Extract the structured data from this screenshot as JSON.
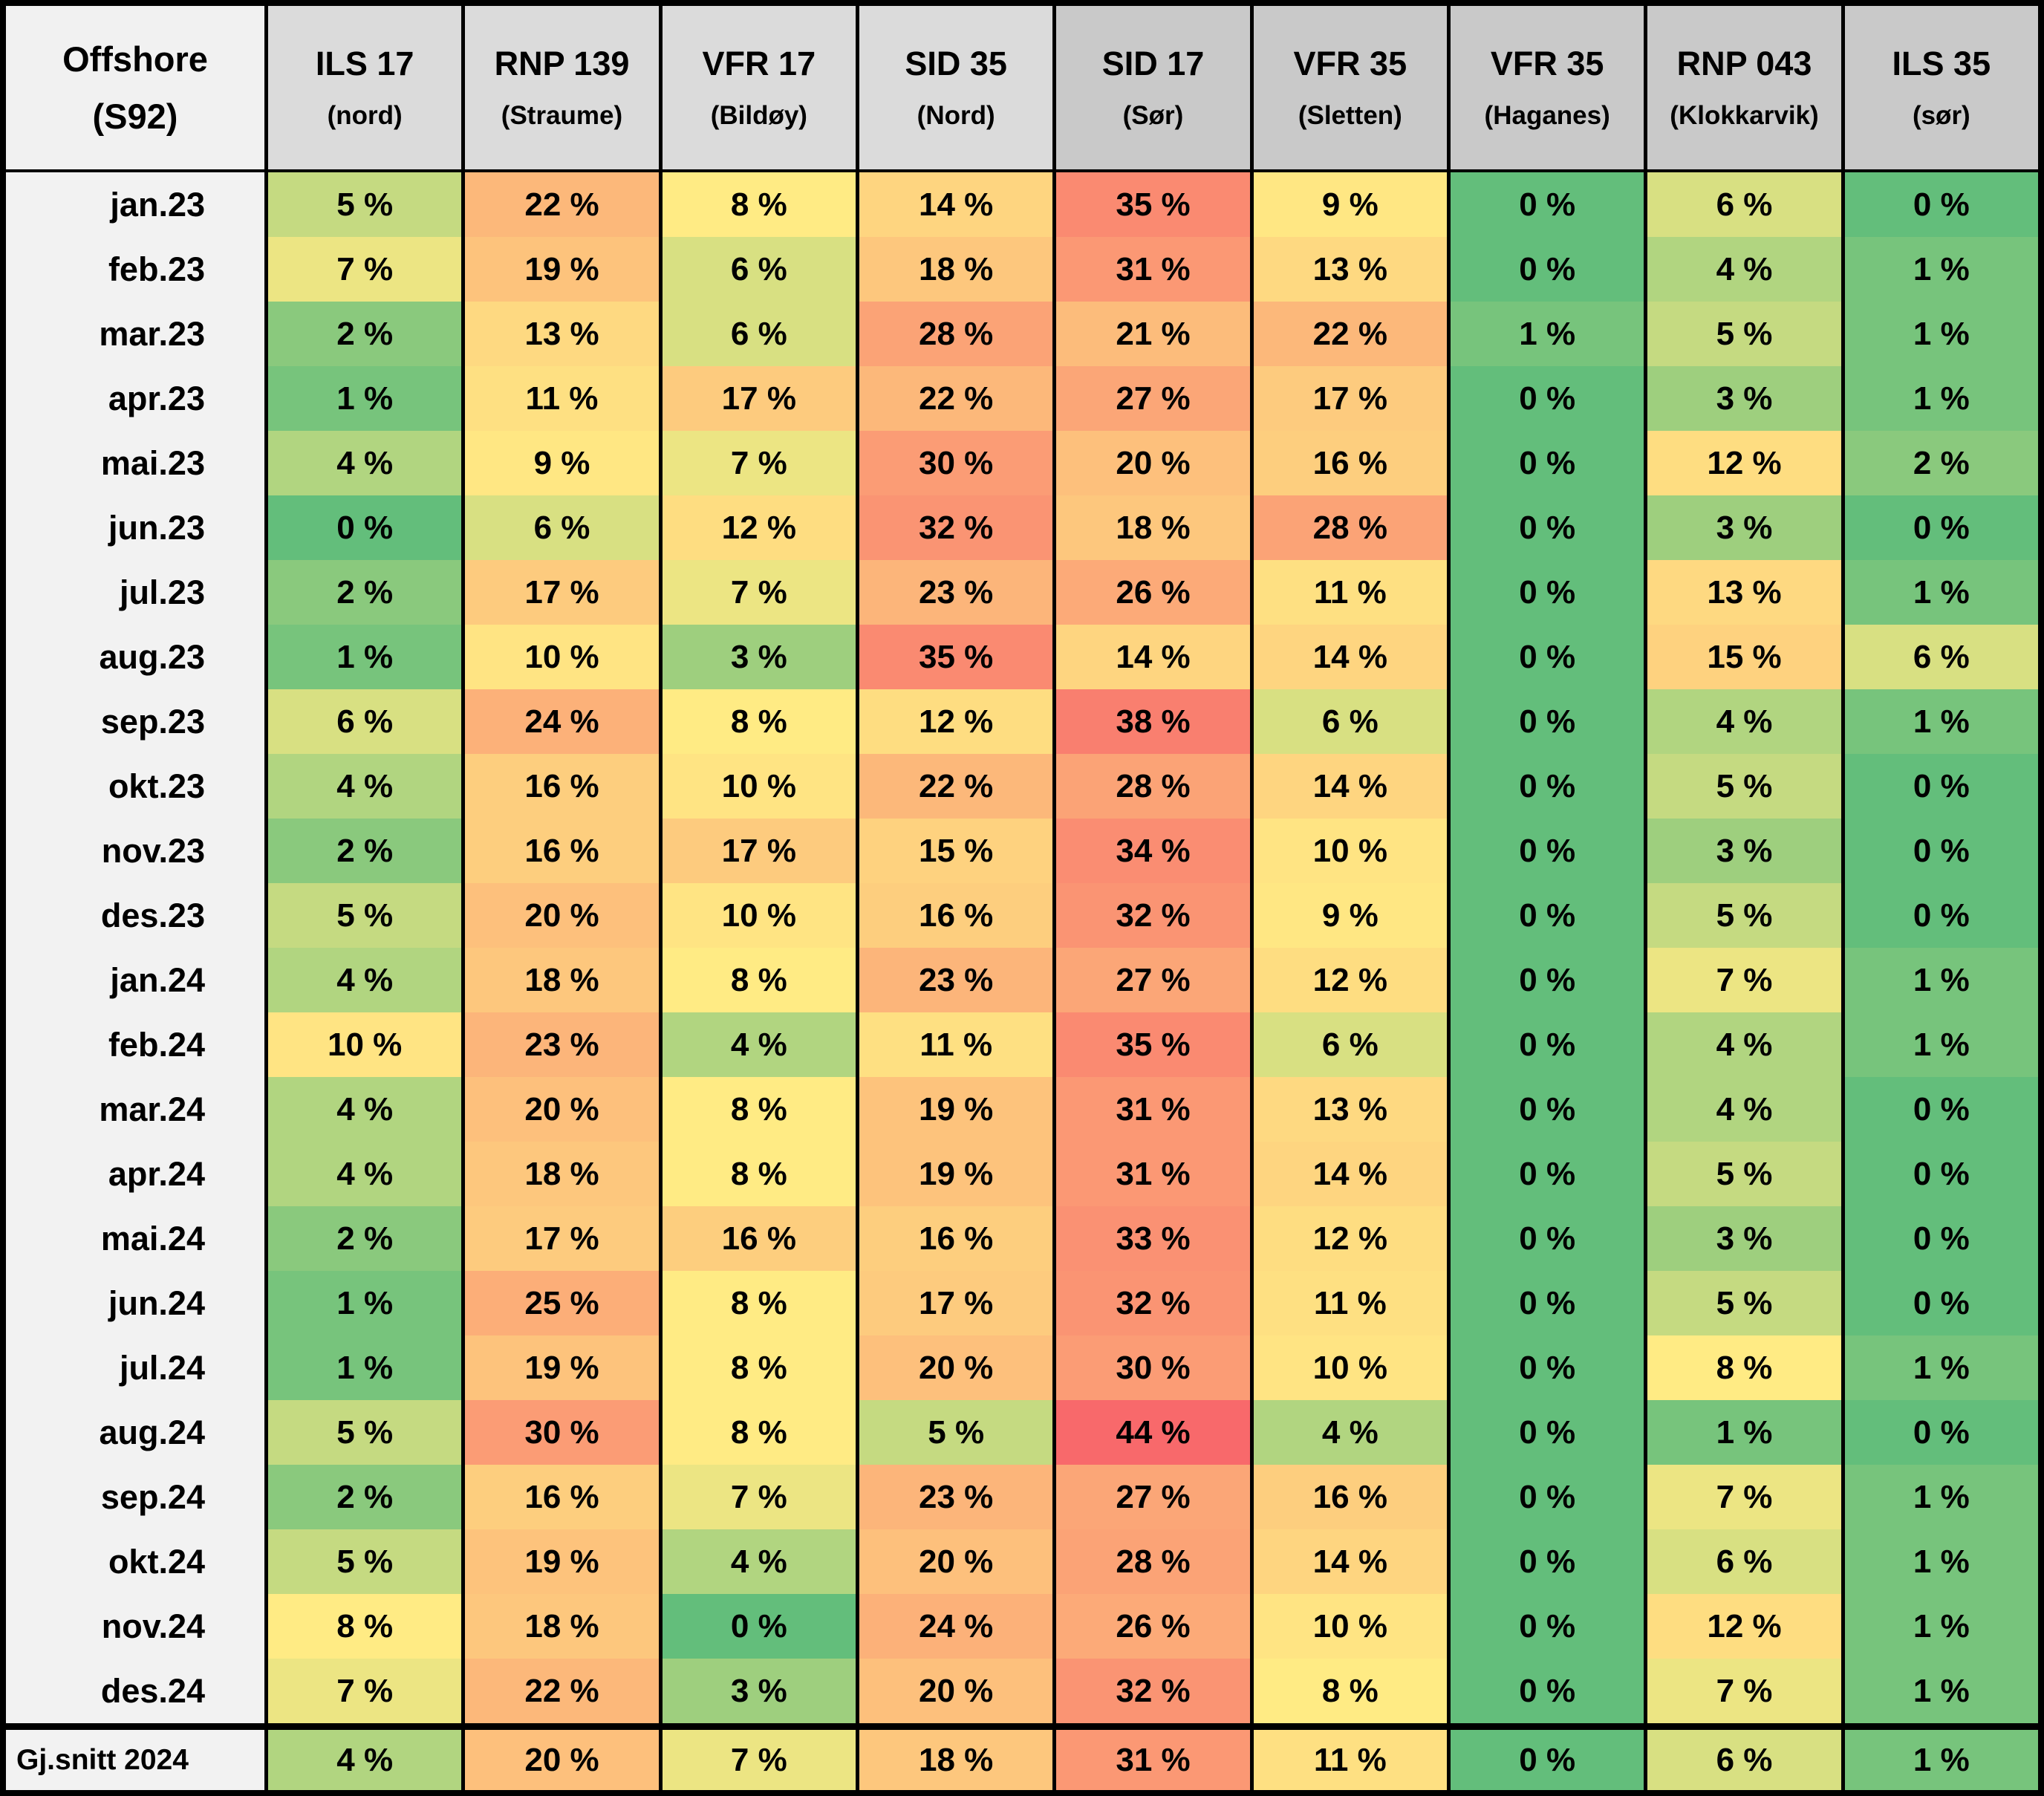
{
  "chart_data": {
    "type": "heatmap",
    "title": "Offshore (S92) approach/departure usage heatmap",
    "corner_title": "Offshore",
    "corner_subtitle": "(S92)",
    "value_suffix": " %",
    "columns": [
      {
        "name": "ILS 17",
        "subtitle": "(nord)",
        "header_shade": "light"
      },
      {
        "name": "RNP 139",
        "subtitle": "(Straume)",
        "header_shade": "light"
      },
      {
        "name": "VFR 17",
        "subtitle": "(Bildøy)",
        "header_shade": "light"
      },
      {
        "name": "SID 35",
        "subtitle": "(Nord)",
        "header_shade": "light"
      },
      {
        "name": "SID 17",
        "subtitle": "(Sør)",
        "header_shade": "dark"
      },
      {
        "name": "VFR 35",
        "subtitle": "(Sletten)",
        "header_shade": "dark"
      },
      {
        "name": "VFR 35",
        "subtitle": "(Haganes)",
        "header_shade": "dark"
      },
      {
        "name": "RNP 043",
        "subtitle": "(Klokkarvik)",
        "header_shade": "dark"
      },
      {
        "name": "ILS 35",
        "subtitle": "(sør)",
        "header_shade": "dark"
      }
    ],
    "rows": [
      "jan.23",
      "feb.23",
      "mar.23",
      "apr.23",
      "mai.23",
      "jun.23",
      "jul.23",
      "aug.23",
      "sep.23",
      "okt.23",
      "nov.23",
      "des.23",
      "jan.24",
      "feb.24",
      "mar.24",
      "apr.24",
      "mai.24",
      "jun.24",
      "jul.24",
      "aug.24",
      "sep.24",
      "okt.24",
      "nov.24",
      "des.24"
    ],
    "values": [
      [
        5,
        22,
        8,
        14,
        35,
        9,
        0,
        6,
        0
      ],
      [
        7,
        19,
        6,
        18,
        31,
        13,
        0,
        4,
        1
      ],
      [
        2,
        13,
        6,
        28,
        21,
        22,
        1,
        5,
        1
      ],
      [
        1,
        11,
        17,
        22,
        27,
        17,
        0,
        3,
        1
      ],
      [
        4,
        9,
        7,
        30,
        20,
        16,
        0,
        12,
        2
      ],
      [
        0,
        6,
        12,
        32,
        18,
        28,
        0,
        3,
        0
      ],
      [
        2,
        17,
        7,
        23,
        26,
        11,
        0,
        13,
        1
      ],
      [
        1,
        10,
        3,
        35,
        14,
        14,
        0,
        15,
        6
      ],
      [
        6,
        24,
        8,
        12,
        38,
        6,
        0,
        4,
        1
      ],
      [
        4,
        16,
        10,
        22,
        28,
        14,
        0,
        5,
        0
      ],
      [
        2,
        16,
        17,
        15,
        34,
        10,
        0,
        3,
        0
      ],
      [
        5,
        20,
        10,
        16,
        32,
        9,
        0,
        5,
        0
      ],
      [
        4,
        18,
        8,
        23,
        27,
        12,
        0,
        7,
        1
      ],
      [
        10,
        23,
        4,
        11,
        35,
        6,
        0,
        4,
        1
      ],
      [
        4,
        20,
        8,
        19,
        31,
        13,
        0,
        4,
        0
      ],
      [
        4,
        18,
        8,
        19,
        31,
        14,
        0,
        5,
        0
      ],
      [
        2,
        17,
        16,
        16,
        33,
        12,
        0,
        3,
        0
      ],
      [
        1,
        25,
        8,
        17,
        32,
        11,
        0,
        5,
        0
      ],
      [
        1,
        19,
        8,
        20,
        30,
        10,
        0,
        8,
        1
      ],
      [
        5,
        30,
        8,
        5,
        44,
        4,
        0,
        1,
        0
      ],
      [
        2,
        16,
        7,
        23,
        27,
        16,
        0,
        7,
        1
      ],
      [
        5,
        19,
        4,
        20,
        28,
        14,
        0,
        6,
        1
      ],
      [
        8,
        18,
        0,
        24,
        26,
        10,
        0,
        12,
        1
      ],
      [
        7,
        22,
        3,
        20,
        32,
        8,
        0,
        7,
        1
      ]
    ],
    "average_row": {
      "label": "Gj.snitt 2024",
      "values": [
        4,
        20,
        7,
        18,
        31,
        11,
        0,
        6,
        1
      ]
    },
    "color_scale": {
      "min": 0,
      "mid": 8,
      "max": 44,
      "min_color": "#63BE7B",
      "mid_color": "#FFEB84",
      "max_color": "#F8696B"
    },
    "layout_hints": {
      "grid": "off",
      "legend": "none",
      "first_column": "month labels",
      "last_row": "2024 average"
    }
  },
  "colors": {
    "border": "#000000",
    "corner_bg": "#F1F1F1",
    "row_label_bg": "#F2F2F2",
    "header_light_bg": "#DBDBDB",
    "header_dark_bg": "#C9C9C9",
    "text": "#000000"
  }
}
